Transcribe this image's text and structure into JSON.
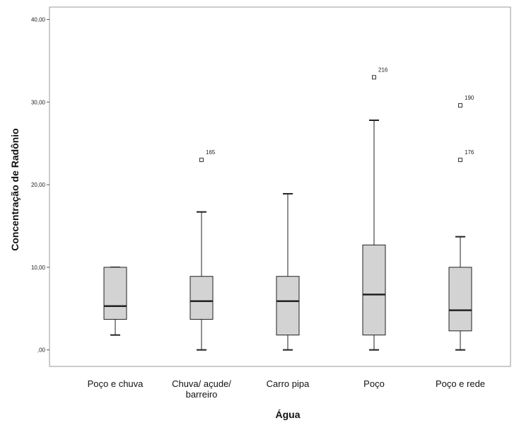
{
  "chart_data": {
    "type": "boxplot",
    "title": "",
    "xlabel": "Água",
    "ylabel": "Concentração de Radônio",
    "ylim": [
      -2,
      41.5
    ],
    "y_ticks": [
      0,
      10,
      20,
      30,
      40
    ],
    "y_tick_labels": [
      ",00",
      "10,00",
      "20,00",
      "30,00",
      "40,00"
    ],
    "grid": false,
    "categories": [
      [
        "Poço e chuva"
      ],
      [
        "Chuva/ açude/",
        "barreiro"
      ],
      [
        "Carro pipa"
      ],
      [
        "Poço"
      ],
      [
        "Poço e rede"
      ]
    ],
    "boxes": [
      {
        "whisker_low": 1.8,
        "q1": 3.7,
        "median": 5.3,
        "q3": 10.0,
        "whisker_high": 10.0,
        "outliers": []
      },
      {
        "whisker_low": 0.0,
        "q1": 3.7,
        "median": 5.9,
        "q3": 8.9,
        "whisker_high": 16.7,
        "outliers": [
          {
            "value": 23.0,
            "label": "165"
          }
        ]
      },
      {
        "whisker_low": 0.0,
        "q1": 1.8,
        "median": 5.9,
        "q3": 8.9,
        "whisker_high": 18.9,
        "outliers": []
      },
      {
        "whisker_low": 0.0,
        "q1": 1.8,
        "median": 6.7,
        "q3": 12.7,
        "whisker_high": 27.8,
        "outliers": [
          {
            "value": 33.0,
            "label": "216"
          }
        ]
      },
      {
        "whisker_low": 0.0,
        "q1": 2.3,
        "median": 4.8,
        "q3": 10.0,
        "whisker_high": 13.7,
        "outliers": [
          {
            "value": 29.6,
            "label": "190"
          },
          {
            "value": 23.0,
            "label": "176"
          }
        ]
      }
    ],
    "colors": {
      "box_fill": "#d3d3d3",
      "stroke": "#222222",
      "frame": "#9a9a9a"
    }
  }
}
